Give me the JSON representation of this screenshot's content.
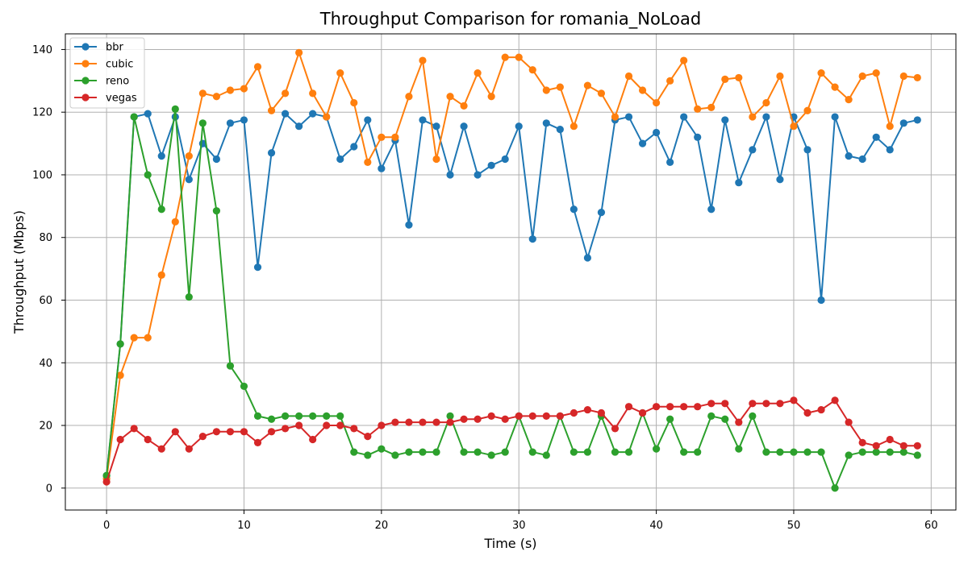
{
  "chart_data": {
    "type": "line",
    "title": "Throughput Comparison for romania_NoLoad",
    "xlabel": "Time (s)",
    "ylabel": "Throughput (Mbps)",
    "xlim": [
      -3,
      61.8
    ],
    "ylim": [
      -7,
      145
    ],
    "xticks": [
      0,
      10,
      20,
      30,
      40,
      50,
      60
    ],
    "yticks": [
      0,
      20,
      40,
      60,
      80,
      100,
      120,
      140
    ],
    "grid": true,
    "legend": "top-left",
    "x": [
      0,
      1,
      2,
      3,
      4,
      5,
      6,
      7,
      8,
      9,
      10,
      11,
      12,
      13,
      14,
      15,
      16,
      17,
      18,
      19,
      20,
      21,
      22,
      23,
      24,
      25,
      26,
      27,
      28,
      29,
      30,
      31,
      32,
      33,
      34,
      35,
      36,
      37,
      38,
      39,
      40,
      41,
      42,
      43,
      44,
      45,
      46,
      47,
      48,
      49,
      50,
      51,
      52,
      53,
      54,
      55,
      56,
      57,
      58,
      59
    ],
    "series": [
      {
        "name": "bbr",
        "color": "#1f77b4",
        "values": [
          4,
          46,
          118.5,
          119.5,
          106,
          118.5,
          98.5,
          110,
          105,
          116.5,
          117.5,
          70.5,
          107,
          119.5,
          115.5,
          119.5,
          118.5,
          105,
          109,
          117.5,
          102,
          111,
          84,
          117.5,
          115.5,
          100,
          115.5,
          100,
          103,
          105,
          115.5,
          79.5,
          116.5,
          114.5,
          89,
          73.5,
          88,
          117.5,
          118.5,
          110,
          113.5,
          104,
          118.5,
          112,
          89,
          117.5,
          97.5,
          108,
          118.5,
          98.5,
          118.5,
          108,
          60,
          118.5,
          106,
          105,
          112,
          108,
          116.5,
          117.5
        ]
      },
      {
        "name": "cubic",
        "color": "#ff7f0e",
        "values": [
          3,
          36,
          48,
          48,
          68,
          85,
          106,
          126,
          125,
          127,
          127.5,
          134.5,
          120.5,
          126,
          139,
          126,
          118.5,
          132.5,
          123,
          104,
          112,
          112,
          125,
          136.5,
          105,
          125,
          122,
          132.5,
          125,
          137.5,
          137.5,
          133.5,
          127,
          128,
          115.5,
          128.5,
          126,
          118.5,
          131.5,
          127,
          123,
          130,
          136.5,
          121,
          121.5,
          130.5,
          131,
          118.5,
          123,
          131.5,
          115.5,
          120.5,
          132.5,
          128,
          124,
          131.5,
          132.5,
          115.5,
          131.5,
          131
        ]
      },
      {
        "name": "reno",
        "color": "#2ca02c",
        "values": [
          4,
          46,
          118.5,
          100,
          89,
          121,
          61,
          116.5,
          88.5,
          39,
          32.5,
          23,
          22,
          23,
          23,
          23,
          23,
          23,
          11.5,
          10.5,
          12.5,
          10.5,
          11.5,
          11.5,
          11.5,
          23,
          11.5,
          11.5,
          10.5,
          11.5,
          23,
          11.5,
          10.5,
          23,
          11.5,
          11.5,
          23,
          11.5,
          11.5,
          24,
          12.5,
          22,
          11.5,
          11.5,
          23,
          22,
          12.5,
          23,
          11.5,
          11.5,
          11.5,
          11.5,
          11.5,
          0,
          10.5,
          11.5,
          11.5,
          11.5,
          11.5,
          10.5
        ]
      },
      {
        "name": "vegas",
        "color": "#d62728",
        "values": [
          2,
          15.5,
          19,
          15.5,
          12.5,
          18,
          12.5,
          16.5,
          18,
          18,
          18,
          14.5,
          18,
          19,
          20,
          15.5,
          20,
          20,
          19,
          16.5,
          20,
          21,
          21,
          21,
          21,
          21,
          22,
          22,
          23,
          22,
          23,
          23,
          23,
          23,
          24,
          25,
          24,
          19,
          26,
          24,
          26,
          26,
          26,
          26,
          27,
          27,
          21,
          27,
          27,
          27,
          28,
          24,
          25,
          28,
          21,
          14.5,
          13.5,
          15.5,
          13.5,
          13.5
        ]
      }
    ]
  }
}
